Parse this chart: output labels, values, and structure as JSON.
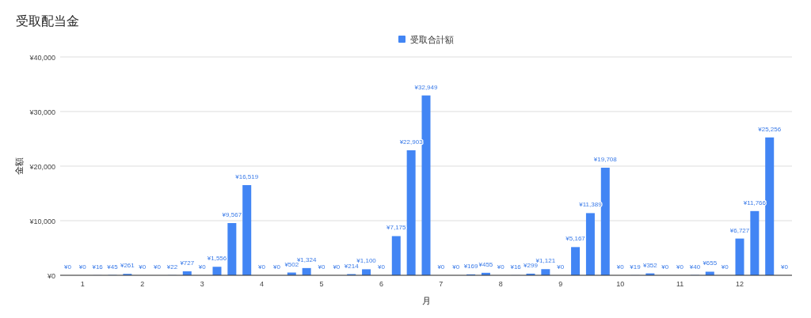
{
  "chart_data": {
    "type": "bar",
    "title": "受取配当金",
    "xlabel": "月",
    "ylabel": "金額",
    "legend": "top",
    "x": [
      0.75,
      1,
      1.25,
      1.5,
      1.75,
      2,
      2.25,
      2.5,
      2.75,
      3,
      3.25,
      3.5,
      3.75,
      4,
      4.25,
      4.5,
      4.75,
      5,
      5.25,
      5.5,
      5.75,
      6,
      6.25,
      6.5,
      6.75,
      7,
      7.25,
      7.5,
      7.75,
      8,
      8.25,
      8.5,
      8.75,
      9,
      9.25,
      9.5,
      9.75,
      10,
      10.25,
      10.5,
      10.75,
      11,
      11.25,
      11.5,
      11.75,
      12,
      12.25,
      12.5,
      12.75
    ],
    "xlim": [
      0.625,
      12.875
    ],
    "xticks": [
      1,
      2,
      3,
      4,
      5,
      6,
      7,
      8,
      9,
      10,
      11,
      12
    ],
    "ylim": [
      0,
      40000
    ],
    "yticks": [
      {
        "value": 0,
        "label": "¥0"
      },
      {
        "value": 10000,
        "label": "¥10,000"
      },
      {
        "value": 20000,
        "label": "¥20,000"
      },
      {
        "value": 30000,
        "label": "¥30,000"
      },
      {
        "value": 40000,
        "label": "¥40,000"
      }
    ],
    "grid": "y",
    "series": [
      {
        "name": "受取合計額",
        "color": "#4285f4",
        "values": [
          0,
          0,
          16,
          45,
          261,
          0,
          0,
          22,
          727,
          0,
          1556,
          9567,
          16519,
          0,
          0,
          502,
          1324,
          0,
          0,
          214,
          1100,
          0,
          7175,
          22903,
          32949,
          0,
          0,
          169,
          455,
          0,
          16,
          299,
          1121,
          0,
          5167,
          11389,
          19708,
          0,
          19,
          352,
          0,
          0,
          40,
          655,
          0,
          6727,
          11766,
          25256,
          0
        ],
        "value_labels": [
          "¥0",
          "¥0",
          "¥16",
          "¥45",
          "¥261",
          "¥0",
          "¥0",
          "¥22",
          "¥727",
          "¥0",
          "¥1,556",
          "¥9,567",
          "¥16,519",
          "¥0",
          "¥0",
          "¥502",
          "¥1,324",
          "¥0",
          "¥0",
          "¥214",
          "¥1,100",
          "¥0",
          "¥7,175",
          "¥22,903",
          "¥32,949",
          "¥0",
          "¥0",
          "¥169",
          "¥455",
          "¥0",
          "¥16",
          "¥299",
          "¥1,121",
          "¥0",
          "¥5,167",
          "¥11,389",
          "¥19,708",
          "¥0",
          "¥19",
          "¥352",
          "¥0",
          "¥0",
          "¥40",
          "¥655",
          "¥0",
          "¥6,727",
          "¥11,766",
          "¥25,256",
          "¥0"
        ]
      }
    ]
  }
}
